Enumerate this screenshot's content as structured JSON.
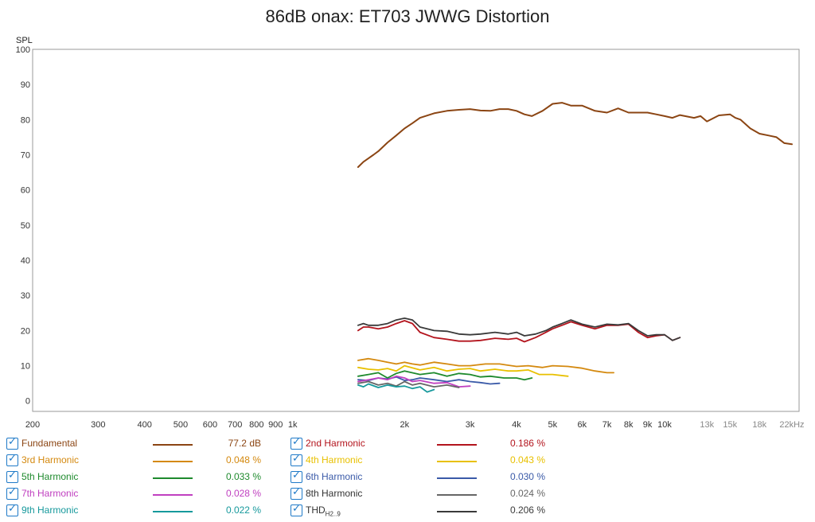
{
  "chart_data": {
    "type": "line",
    "title": "86dB onax: ET703 JWWG Distortion",
    "ylabel": "SPL",
    "xlabel": "",
    "x_scale": "log",
    "xlim": [
      200,
      23000
    ],
    "ylim": [
      -3,
      100
    ],
    "grid": true,
    "legend_position": "bottom",
    "y_ticks": [
      0,
      10,
      20,
      30,
      40,
      50,
      60,
      70,
      80,
      90,
      100
    ],
    "x_ticks": [
      {
        "v": 200,
        "label": "200"
      },
      {
        "v": 300,
        "label": "300"
      },
      {
        "v": 400,
        "label": "400"
      },
      {
        "v": 500,
        "label": "500"
      },
      {
        "v": 600,
        "label": "600"
      },
      {
        "v": 700,
        "label": "700"
      },
      {
        "v": 800,
        "label": "800"
      },
      {
        "v": 900,
        "label": "900"
      },
      {
        "v": 1000,
        "label": "1k"
      },
      {
        "v": 2000,
        "label": "2k"
      },
      {
        "v": 3000,
        "label": "3k"
      },
      {
        "v": 4000,
        "label": "4k"
      },
      {
        "v": 5000,
        "label": "5k"
      },
      {
        "v": 6000,
        "label": "6k"
      },
      {
        "v": 7000,
        "label": "7k"
      },
      {
        "v": 8000,
        "label": "8k"
      },
      {
        "v": 9000,
        "label": "9k"
      },
      {
        "v": 10000,
        "label": "10k"
      },
      {
        "v": 13000,
        "label": "13k"
      },
      {
        "v": 15000,
        "label": "15k"
      },
      {
        "v": 18000,
        "label": "18k"
      },
      {
        "v": 22000,
        "label": "22kHz"
      }
    ],
    "series": [
      {
        "name": "Fundamental",
        "value": "77.2 dB",
        "color": "#8b4513",
        "x": [
          1500,
          1550,
          1600,
          1650,
          1700,
          1800,
          1900,
          2000,
          2100,
          2200,
          2400,
          2600,
          2800,
          3000,
          3200,
          3400,
          3600,
          3800,
          4000,
          4200,
          4400,
          4700,
          5000,
          5300,
          5600,
          6000,
          6500,
          7000,
          7500,
          8000,
          8500,
          9000,
          9500,
          10000,
          10500,
          11000,
          12000,
          12500,
          13000,
          14000,
          15000,
          15500,
          16000,
          17000,
          18000,
          19000,
          20000,
          21000,
          22000
        ],
        "y": [
          66.5,
          68,
          69,
          70,
          71,
          73.5,
          75.5,
          77.5,
          79,
          80.5,
          81.8,
          82.5,
          82.8,
          83,
          82.6,
          82.5,
          83,
          83,
          82.5,
          81.5,
          81,
          82.5,
          84.5,
          84.8,
          84,
          84,
          82.5,
          82,
          83.2,
          82,
          82,
          82,
          81.5,
          81,
          80.5,
          81.3,
          80.5,
          81,
          79.5,
          81.2,
          81.5,
          80.5,
          80,
          77.5,
          76,
          75.5,
          75,
          73.3,
          73
        ]
      },
      {
        "name": "2nd Harmonic",
        "value": "0.186 %",
        "color": "#b3141d",
        "x": [
          1500,
          1550,
          1600,
          1700,
          1800,
          1900,
          2000,
          2100,
          2200,
          2400,
          2600,
          2800,
          3000,
          3200,
          3500,
          3800,
          4000,
          4200,
          4500,
          4800,
          5000,
          5300,
          5600,
          6000,
          6500,
          7000,
          7500,
          8000,
          8500,
          9000,
          9500,
          10000,
          10500,
          11000
        ],
        "y": [
          20,
          21,
          21,
          20.5,
          21,
          22,
          22.8,
          22,
          19.5,
          18,
          17.5,
          17,
          17,
          17.2,
          17.8,
          17.5,
          17.8,
          16.8,
          18,
          19.5,
          20.5,
          21.5,
          22.5,
          21.5,
          20.5,
          21.5,
          21.5,
          21.8,
          19.5,
          18,
          18.5,
          18.8,
          17.2,
          18
        ]
      },
      {
        "name": "3rd Harmonic",
        "value": "0.048 %",
        "color": "#d4890f",
        "x": [
          1500,
          1600,
          1700,
          1800,
          1900,
          2000,
          2100,
          2200,
          2400,
          2600,
          2800,
          3000,
          3300,
          3600,
          4000,
          4300,
          4700,
          5000,
          5500,
          6000,
          6500,
          7000,
          7300
        ],
        "y": [
          11.5,
          12,
          11.5,
          11,
          10.5,
          11,
          10.5,
          10.2,
          11,
          10.5,
          10,
          10,
          10.5,
          10.5,
          9.8,
          10,
          9.5,
          10,
          9.8,
          9.3,
          8.5,
          8,
          8
        ]
      },
      {
        "name": "4th Harmonic",
        "value": "0.043 %",
        "color": "#e8c000",
        "x": [
          1500,
          1600,
          1700,
          1800,
          1900,
          2000,
          2200,
          2400,
          2600,
          2800,
          3000,
          3200,
          3500,
          3800,
          4000,
          4300,
          4600,
          5000,
          5500
        ],
        "y": [
          9.5,
          9,
          8.8,
          9.2,
          8.5,
          10,
          8.8,
          9.5,
          8.5,
          9,
          9.2,
          8.5,
          9,
          8.5,
          8.5,
          8.8,
          7.5,
          7.5,
          7
        ]
      },
      {
        "name": "5th Harmonic",
        "value": "0.033 %",
        "color": "#1e8a2d",
        "x": [
          1500,
          1600,
          1700,
          1800,
          1900,
          2000,
          2200,
          2400,
          2600,
          2800,
          3000,
          3200,
          3400,
          3700,
          4000,
          4200,
          4400
        ],
        "y": [
          7,
          7.5,
          8,
          6.5,
          7.8,
          8.5,
          7.5,
          8,
          7,
          7.8,
          7.5,
          6.8,
          7,
          6.5,
          6.5,
          6,
          6.5
        ]
      },
      {
        "name": "6th Harmonic",
        "value": "0.030 %",
        "color": "#3a5aa8",
        "x": [
          1500,
          1600,
          1700,
          1800,
          1900,
          2000,
          2100,
          2200,
          2400,
          2600,
          2800,
          3000,
          3200,
          3400,
          3600
        ],
        "y": [
          6,
          5.8,
          6.5,
          6.2,
          6.8,
          5.8,
          6,
          6.5,
          6,
          5.5,
          6,
          5.5,
          5.2,
          4.8,
          5
        ]
      },
      {
        "name": "7th Harmonic",
        "value": "0.028 %",
        "color": "#c040c0",
        "x": [
          1500,
          1600,
          1700,
          1800,
          1900,
          2000,
          2100,
          2200,
          2400,
          2600,
          2800,
          3000
        ],
        "y": [
          5.5,
          6,
          6.5,
          6,
          7,
          6.5,
          5.5,
          5.8,
          5,
          5.2,
          4,
          4.2
        ]
      },
      {
        "name": "8th Harmonic",
        "value": "0.024 %",
        "color": "#666666",
        "x": [
          1500,
          1600,
          1700,
          1800,
          1900,
          2000,
          2100,
          2200,
          2400,
          2600,
          2800
        ],
        "y": [
          5,
          5.5,
          4.5,
          5,
          4.2,
          5.5,
          4.5,
          5,
          4,
          4.5,
          3.8
        ]
      },
      {
        "name": "9th Harmonic",
        "value": "0.022 %",
        "color": "#16999c",
        "x": [
          1500,
          1550,
          1600,
          1700,
          1800,
          1900,
          2000,
          2100,
          2200,
          2300,
          2400
        ],
        "y": [
          4.5,
          4,
          4.8,
          3.8,
          4.5,
          4,
          4.2,
          3.5,
          4,
          2.5,
          3.2
        ]
      },
      {
        "name": "THD",
        "name_sub": "H2..9",
        "value": "0.206 %",
        "color": "#3a3a3a",
        "x": [
          1500,
          1550,
          1600,
          1700,
          1800,
          1900,
          2000,
          2100,
          2200,
          2400,
          2600,
          2800,
          3000,
          3200,
          3500,
          3800,
          4000,
          4200,
          4500,
          4800,
          5000,
          5300,
          5600,
          6000,
          6500,
          7000,
          7500,
          8000,
          8500,
          9000,
          9500,
          10000,
          10500,
          11000
        ],
        "y": [
          21.5,
          22,
          21.5,
          21.5,
          22,
          23,
          23.5,
          23,
          21,
          20,
          19.8,
          19,
          18.8,
          19,
          19.5,
          19,
          19.5,
          18.5,
          19,
          20,
          21,
          22,
          23,
          21.8,
          21,
          21.8,
          21.6,
          22,
          20,
          18.5,
          18.8,
          18.8,
          17.2,
          18
        ]
      }
    ]
  }
}
